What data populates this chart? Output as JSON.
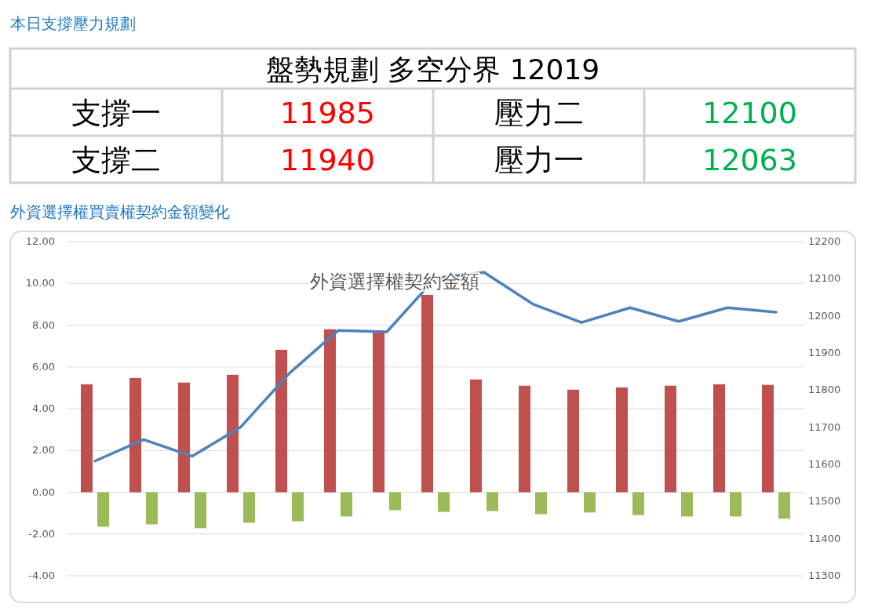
{
  "chart_data": [
    {
      "type": "other",
      "title": "本日支撐壓力規劃",
      "annotations": [
        "盤勢規劃 多空分界 12019",
        "支撐一",
        "11985",
        "壓力二",
        "12100",
        "支撐二",
        "11940",
        "壓力一",
        "12063"
      ]
    },
    {
      "type": "bar",
      "title": "外資選擇權買賣權契約金額變化",
      "subtitle": "外資選擇權契約金額",
      "categories": [
        null,
        null,
        null,
        null,
        null,
        null,
        null,
        null,
        null,
        null,
        null,
        null,
        null,
        null,
        null
      ],
      "series": [
        {
          "color": "#c0504d",
          "values": [
            5.17,
            5.47,
            5.25,
            5.62,
            6.82,
            7.8,
            7.65,
            9.45,
            5.4,
            5.1,
            4.91,
            5.02,
            5.1,
            5.17,
            5.14
          ]
        },
        {
          "color": "#9bbb59",
          "values": [
            -1.65,
            -1.54,
            -1.72,
            -1.46,
            -1.39,
            -1.16,
            -0.86,
            -0.94,
            -0.9,
            -1.05,
            -0.97,
            -1.09,
            -1.16,
            -1.16,
            -1.27
          ]
        },
        {
          "type": "line",
          "axis": "y2",
          "color": "#4f81bd",
          "values": [
            11609,
            11667,
            11622,
            11701,
            11846,
            11961,
            11957,
            12102,
            12117,
            12032,
            11982,
            12022,
            11985,
            12022,
            12010
          ]
        }
      ],
      "ylim": [
        -4,
        12
      ],
      "yticks": [
        {
          "value": -4,
          "label": "-4.00"
        },
        {
          "value": -2,
          "label": "-2.00"
        },
        {
          "value": 0,
          "label": "0.00"
        },
        {
          "value": 2,
          "label": "2.00"
        },
        {
          "value": 4,
          "label": "4.00"
        },
        {
          "value": 6,
          "label": "6.00"
        },
        {
          "value": 8,
          "label": "8.00"
        },
        {
          "value": 10,
          "label": "10.00"
        },
        {
          "value": 12,
          "label": "12.00"
        }
      ],
      "y2lim": [
        11300,
        12200
      ],
      "y2ticks": [
        11300,
        11400,
        11500,
        11600,
        11700,
        11800,
        11900,
        12000,
        12100,
        12200
      ],
      "grid": "y",
      "marker": "none",
      "line_style": "solid"
    }
  ]
}
